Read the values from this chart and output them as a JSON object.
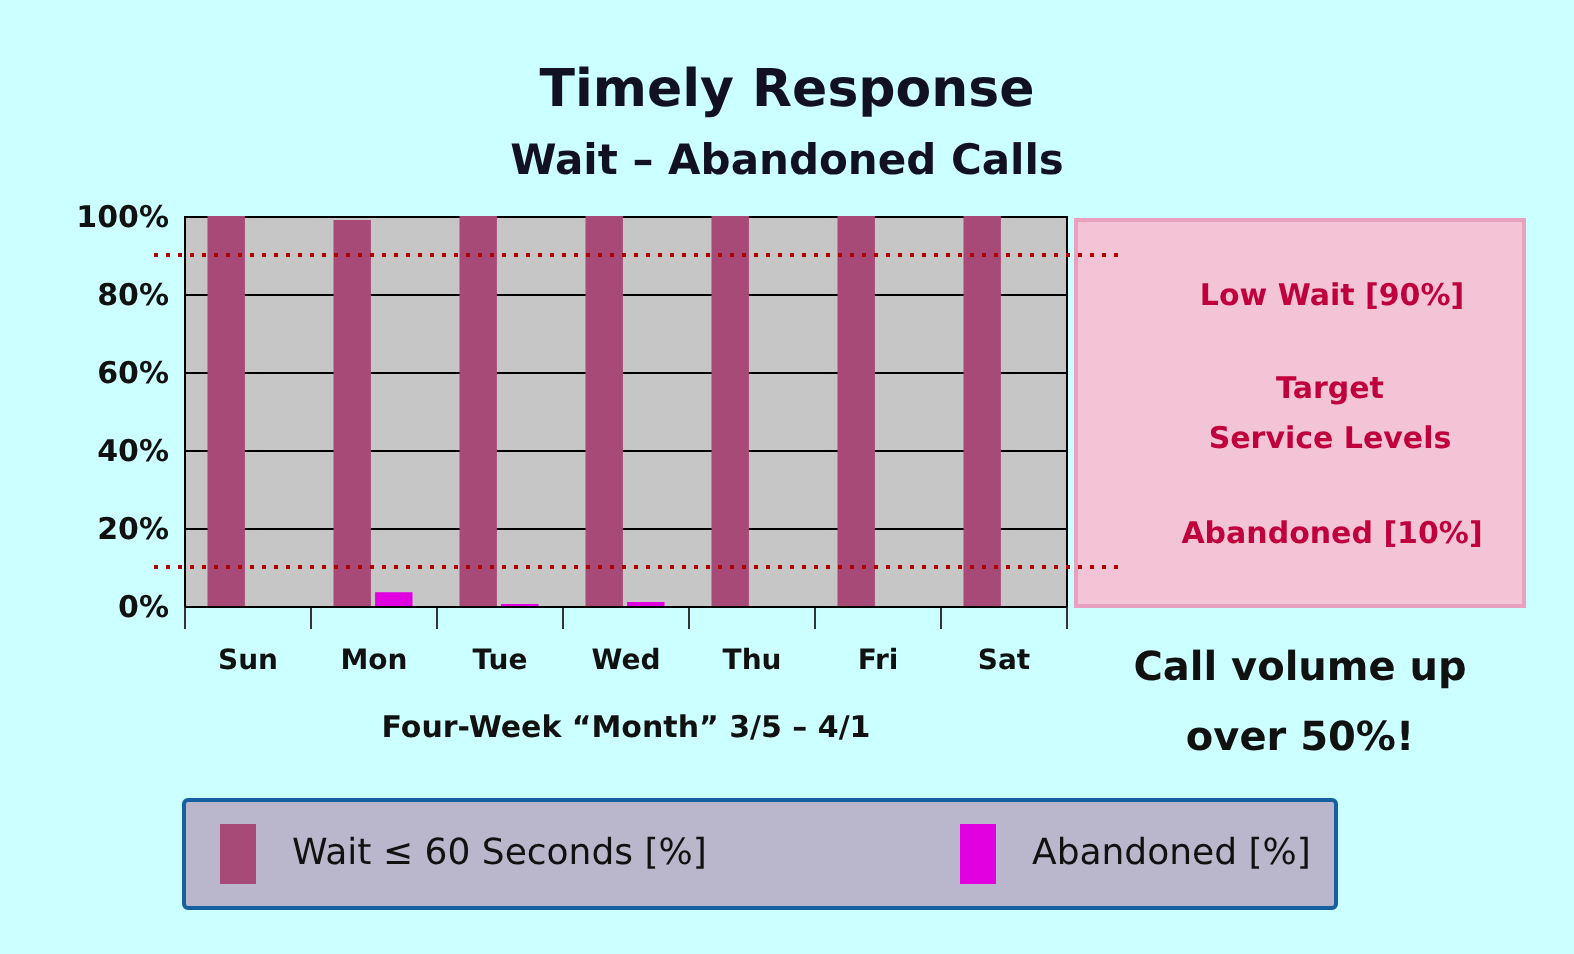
{
  "chart_data": {
    "type": "bar",
    "title": "Timely Response",
    "subtitle": "Wait – Abandoned Calls",
    "xlabel": "Four-Week “Month” 3/5 – 4/1",
    "categories": [
      "Sun",
      "Mon",
      "Tue",
      "Wed",
      "Thu",
      "Fri",
      "Sat"
    ],
    "series": [
      {
        "name": "Wait ≤ 60 Seconds [%]",
        "color": "#a84a78",
        "values": [
          100,
          99,
          100,
          100,
          100,
          100,
          100
        ]
      },
      {
        "name": "Abandoned [%]",
        "color": "#e000e0",
        "values": [
          0,
          3.5,
          0.5,
          1,
          0,
          0,
          0
        ]
      }
    ],
    "ylim": [
      0,
      100
    ],
    "yticks": [
      {
        "value": 0,
        "label": "0%"
      },
      {
        "value": 20,
        "label": "20%"
      },
      {
        "value": 40,
        "label": "40%"
      },
      {
        "value": 60,
        "label": "60%"
      },
      {
        "value": 80,
        "label": "80%"
      },
      {
        "value": 100,
        "label": "100%"
      }
    ],
    "grid": "y",
    "legend": "bottom",
    "ref_lines": [
      {
        "axis": "y",
        "value": 90,
        "label": "Low Wait [90%]",
        "color": "#b00000",
        "line_style": "dotted"
      },
      {
        "axis": "y",
        "value": 10,
        "label": "Abandoned [10%]",
        "color": "#b00000",
        "line_style": "dotted"
      }
    ],
    "annotations": [
      "Target\nService Levels",
      "Call volume up\nover 50%!"
    ]
  }
}
